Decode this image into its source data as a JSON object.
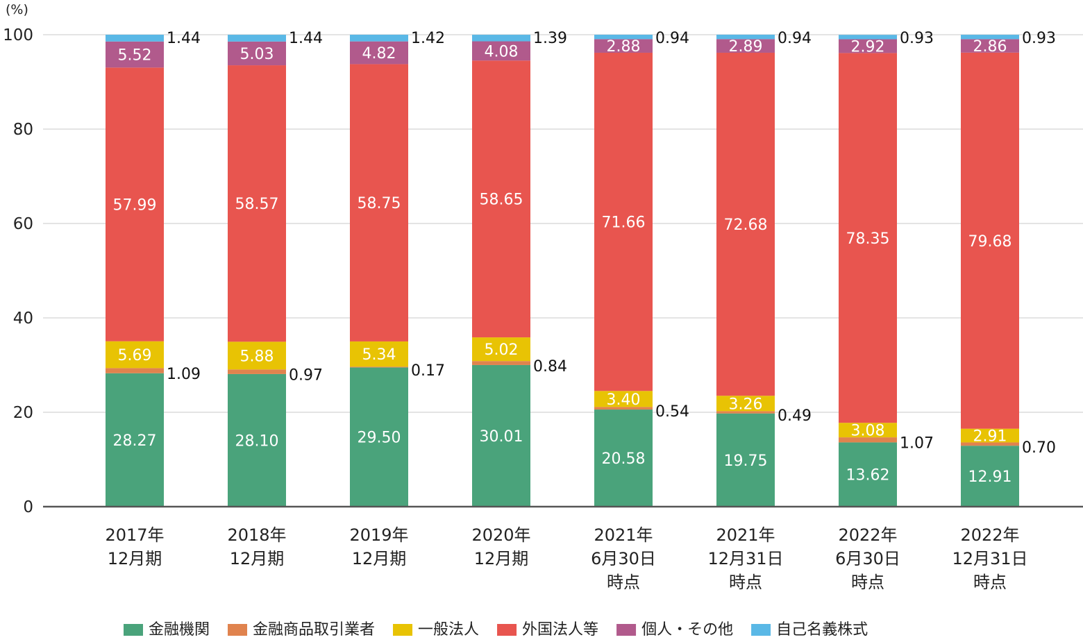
{
  "chart_data": {
    "type": "bar",
    "stacked": true,
    "y_unit_label": "(%)",
    "ylim": [
      0,
      100
    ],
    "y_ticks": [
      0,
      20,
      40,
      60,
      80,
      100
    ],
    "grid": true,
    "legend_position": "bottom",
    "categories": [
      [
        "2017年",
        "12月期"
      ],
      [
        "2018年",
        "12月期"
      ],
      [
        "2019年",
        "12月期"
      ],
      [
        "2020年",
        "12月期"
      ],
      [
        "2021年",
        "6月30日",
        "時点"
      ],
      [
        "2021年",
        "12月31日",
        "時点"
      ],
      [
        "2022年",
        "6月30日",
        "時点"
      ],
      [
        "2022年",
        "12月31日",
        "時点"
      ]
    ],
    "series": [
      {
        "name": "金融機関",
        "color": "#4aa37b",
        "label_inside": true,
        "values": [
          28.27,
          28.1,
          29.5,
          30.01,
          20.58,
          19.75,
          13.62,
          12.91
        ],
        "labels": [
          "28.27",
          "28.10",
          "29.50",
          "30.01",
          "20.58",
          "19.75",
          "13.62",
          "12.91"
        ]
      },
      {
        "name": "金融商品取引業者",
        "color": "#e0834e",
        "label_inside": false,
        "values": [
          1.09,
          0.97,
          0.17,
          0.84,
          0.54,
          0.49,
          1.07,
          0.7
        ],
        "labels": [
          "1.09",
          "0.97",
          "0.17",
          "0.84",
          "0.54",
          "0.49",
          "1.07",
          "0.70"
        ]
      },
      {
        "name": "一般法人",
        "color": "#e8c304",
        "label_inside": true,
        "values": [
          5.69,
          5.88,
          5.34,
          5.02,
          3.4,
          3.26,
          3.08,
          2.91
        ],
        "labels": [
          "5.69",
          "5.88",
          "5.34",
          "5.02",
          "3.40",
          "3.26",
          "3.08",
          "2.91"
        ]
      },
      {
        "name": "外国法人等",
        "color": "#e8554f",
        "label_inside": true,
        "values": [
          57.99,
          58.57,
          58.75,
          58.65,
          71.66,
          72.68,
          78.35,
          79.68
        ],
        "labels": [
          "57.99",
          "58.57",
          "58.75",
          "58.65",
          "71.66",
          "72.68",
          "78.35",
          "79.68"
        ]
      },
      {
        "name": "個人・その他",
        "color": "#b15a8c",
        "label_inside": true,
        "values": [
          5.52,
          5.03,
          4.82,
          4.08,
          2.88,
          2.89,
          2.92,
          2.86
        ],
        "labels": [
          "5.52",
          "5.03",
          "4.82",
          "4.08",
          "2.88",
          "2.89",
          "2.92",
          "2.86"
        ]
      },
      {
        "name": "自己名義株式",
        "color": "#5ab8e6",
        "label_inside": false,
        "values": [
          1.44,
          1.44,
          1.42,
          1.39,
          0.94,
          0.94,
          0.93,
          0.93
        ],
        "labels": [
          "1.44",
          "1.44",
          "1.42",
          "1.39",
          "0.94",
          "0.94",
          "0.93",
          "0.93"
        ]
      }
    ],
    "legend": [
      {
        "name": "金融機関",
        "color": "#4aa37b"
      },
      {
        "name": "金融商品取引業者",
        "color": "#e0834e"
      },
      {
        "name": "一般法人",
        "color": "#e8c304"
      },
      {
        "name": "外国法人等",
        "color": "#e8554f"
      },
      {
        "name": "個人・その他",
        "color": "#b15a8c"
      },
      {
        "name": "自己名義株式",
        "color": "#5ab8e6"
      }
    ]
  }
}
